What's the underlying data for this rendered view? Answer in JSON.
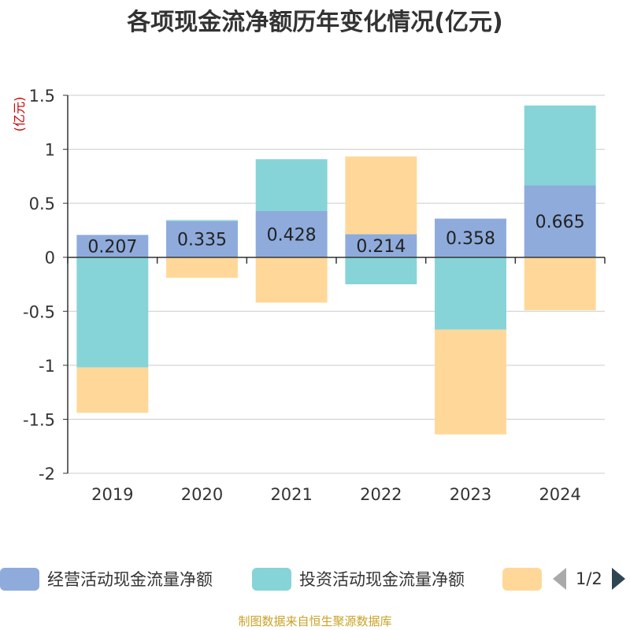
{
  "colors": {
    "operating": "#8eabdb",
    "investing": "#86d4d7",
    "financing": "#ffd899",
    "grid": "#cccccc",
    "axis": "#333333",
    "title": "#333333",
    "unit": "#cc0000",
    "source": "#c9a227"
  },
  "legend": {
    "items": [
      {
        "label": "经营活动现金流量净额",
        "color": "#8eabdb"
      },
      {
        "label": "投资活动现金流量净额",
        "color": "#86d4d7"
      },
      {
        "label": "",
        "color": "#ffd899"
      }
    ],
    "page": "1/2"
  },
  "source": "制图数据来自恒生聚源数据库",
  "chart_data": {
    "type": "bar",
    "stacked": true,
    "title": "各项现金流净额历年变化情况(亿元)",
    "ylabel": "(亿元)",
    "xlabel": "",
    "categories": [
      "2019",
      "2020",
      "2021",
      "2022",
      "2023",
      "2024"
    ],
    "ylim": [
      -2,
      1.5
    ],
    "yticks": [
      1.5,
      1,
      0.5,
      0,
      -0.5,
      -1,
      -1.5,
      -2
    ],
    "ytick_labels": [
      "1.5",
      "1",
      "0.5",
      "0",
      "-0.5",
      "-1",
      "-1.5",
      "-2"
    ],
    "grid": true,
    "legend_position": "bottom",
    "series": [
      {
        "name": "经营活动现金流量净额",
        "values": [
          0.207,
          0.335,
          0.428,
          0.214,
          0.358,
          0.665
        ],
        "labels": [
          "0.207",
          "0.335",
          "0.428",
          "0.214",
          "0.358",
          "0.665"
        ]
      },
      {
        "name": "投资活动现金流量净额",
        "values": [
          -1.02,
          0.01,
          0.48,
          -0.25,
          -0.67,
          0.74
        ]
      },
      {
        "name": "",
        "values": [
          -0.42,
          -0.19,
          -0.42,
          0.72,
          -0.97,
          -0.49
        ]
      }
    ]
  }
}
